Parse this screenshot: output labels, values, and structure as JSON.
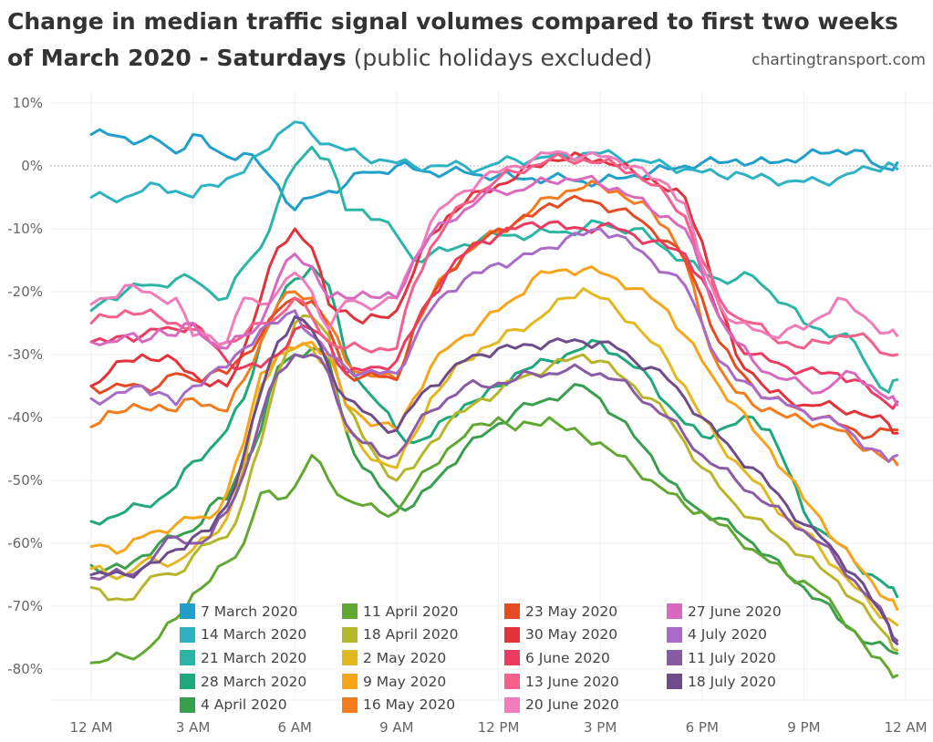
{
  "chart_data": {
    "type": "line",
    "title_bold": "Change in median traffic signal volumes compared to first two weeks of March 2020 - Saturdays",
    "title_light": "(public holidays excluded)",
    "source": "chartingtransport.com",
    "xlabel": "",
    "ylabel": "",
    "xlim": [
      0,
      24
    ],
    "ylim": [
      -87,
      11
    ],
    "x_ticks": [
      {
        "value": 0,
        "label": "12 AM"
      },
      {
        "value": 3,
        "label": "3 AM"
      },
      {
        "value": 6,
        "label": "6 AM"
      },
      {
        "value": 9,
        "label": "9 AM"
      },
      {
        "value": 12,
        "label": "12 PM"
      },
      {
        "value": 15,
        "label": "3 PM"
      },
      {
        "value": 18,
        "label": "6 PM"
      },
      {
        "value": 21,
        "label": "9 PM"
      },
      {
        "value": 24,
        "label": "12 AM"
      }
    ],
    "y_ticks": [
      {
        "value": 10,
        "label": "10%"
      },
      {
        "value": 0,
        "label": "0%"
      },
      {
        "value": -10,
        "label": "-10%"
      },
      {
        "value": -20,
        "label": "-20%"
      },
      {
        "value": -30,
        "label": "-30%"
      },
      {
        "value": -40,
        "label": "-40%"
      },
      {
        "value": -50,
        "label": "-50%"
      },
      {
        "value": -60,
        "label": "-60%"
      },
      {
        "value": -70,
        "label": "-70%"
      },
      {
        "value": -80,
        "label": "-80%"
      }
    ],
    "reference_line": 0,
    "grid": true,
    "legend_position": "bottom-center",
    "x": [
      0,
      0.5,
      1,
      1.5,
      2,
      2.5,
      3,
      3.5,
      4,
      4.5,
      5,
      5.5,
      6,
      6.5,
      7,
      7.5,
      8,
      8.5,
      9,
      9.5,
      10,
      10.5,
      11,
      11.5,
      12,
      12.5,
      13,
      13.5,
      14,
      14.5,
      15,
      15.5,
      16,
      16.5,
      17,
      17.5,
      18,
      18.5,
      19,
      19.5,
      20,
      20.5,
      21,
      21.5,
      22,
      22.5,
      23,
      23.5,
      23.75
    ],
    "series": [
      {
        "name": "7 March 2020",
        "color": "#1f9fca",
        "values": [
          5,
          5,
          4.5,
          4,
          4,
          2,
          5,
          3,
          1.5,
          2,
          0,
          -3,
          -7,
          -5,
          -4,
          -3,
          -1,
          -1,
          0,
          -0.5,
          -1,
          -1,
          -1,
          -1.5,
          -1.5,
          -2,
          -2,
          -2,
          -2,
          -2.5,
          -2.5,
          -2,
          -1.5,
          -1,
          -0.5,
          0,
          0.5,
          0.5,
          1,
          0.5,
          0.5,
          1,
          1.5,
          2,
          2.5,
          2.5,
          0.5,
          -0.5,
          0.5
        ]
      },
      {
        "name": "14 March 2020",
        "color": "#2db2c4",
        "values": [
          -5,
          -5,
          -5,
          -4,
          -3,
          -4,
          -5,
          -3,
          -2,
          -1,
          2,
          5,
          7,
          5,
          3.5,
          2.5,
          1.5,
          1,
          0.5,
          0,
          0,
          0,
          0,
          -0.5,
          0.5,
          1,
          1,
          1.5,
          1.5,
          2,
          2,
          1.5,
          1,
          0.5,
          0,
          -0.5,
          -1,
          -1.5,
          -1,
          -2,
          -2,
          -2.5,
          -2.5,
          -2.5,
          -2,
          -1,
          -0.5,
          0.5,
          -0.5
        ]
      },
      {
        "name": "21 March 2020",
        "color": "#2bb5a5",
        "values": [
          -23,
          -21,
          -20,
          -19,
          -19,
          -18,
          -18,
          -20,
          -21,
          -16,
          -13,
          -6,
          0,
          3,
          1,
          -7,
          -7,
          -8.5,
          -11,
          -15,
          -14,
          -13.5,
          -12.5,
          -11.5,
          -11,
          -11,
          -11,
          -10.5,
          -10.5,
          -10,
          -9,
          -10,
          -10,
          -11.5,
          -13.5,
          -15,
          -17,
          -18,
          -18,
          -17.5,
          -20,
          -22,
          -25,
          -26,
          -27,
          -28,
          -33,
          -36,
          -34
        ]
      },
      {
        "name": "28 March 2020",
        "color": "#1fa77d",
        "values": [
          -56.5,
          -56,
          -55,
          -54,
          -53,
          -51,
          -47,
          -45,
          -42,
          -37,
          -28,
          -22,
          -18,
          -16,
          -19,
          -30,
          -35,
          -38,
          -42,
          -44,
          -43,
          -40,
          -38,
          -37,
          -35,
          -33,
          -32,
          -31,
          -30,
          -29,
          -28,
          -30,
          -32,
          -34,
          -38,
          -41,
          -43,
          -42,
          -41,
          -40,
          -42,
          -48,
          -55,
          -58,
          -60,
          -63,
          -65,
          -67,
          -68.5
        ]
      },
      {
        "name": "4 April 2020",
        "color": "#3a9e4f",
        "values": [
          -63.5,
          -64,
          -64,
          -62,
          -60,
          -59,
          -58,
          -54,
          -53,
          -47,
          -42,
          -32,
          -30,
          -29,
          -31,
          -42,
          -48,
          -51,
          -54,
          -54,
          -51,
          -48,
          -45,
          -43,
          -41,
          -39,
          -38,
          -37,
          -36,
          -35,
          -37,
          -40,
          -43,
          -46,
          -50,
          -53,
          -55,
          -56,
          -58,
          -60,
          -62,
          -65,
          -67,
          -69,
          -72,
          -74,
          -76,
          -77,
          -77.5
        ]
      },
      {
        "name": "11 April 2020",
        "color": "#61a832",
        "values": [
          -79,
          -78.5,
          -78,
          -77.5,
          -75,
          -72,
          -68,
          -66,
          -63,
          -60,
          -52,
          -53,
          -51,
          -46,
          -50,
          -53,
          -54,
          -55,
          -55,
          -51,
          -48,
          -45,
          -43,
          -41,
          -40,
          -42,
          -41,
          -40,
          -42,
          -43,
          -44,
          -46,
          -48,
          -50,
          -52,
          -54,
          -55,
          -57,
          -59,
          -61,
          -63,
          -65,
          -66,
          -68,
          -71,
          -74,
          -78,
          -80,
          -81
        ]
      },
      {
        "name": "18 April 2020",
        "color": "#b5b62a",
        "values": [
          -67,
          -69,
          -69,
          -67,
          -65,
          -65,
          -62,
          -60,
          -59,
          -53,
          -44,
          -33,
          -25,
          -24,
          -27,
          -38,
          -43,
          -47,
          -50,
          -48,
          -44,
          -41,
          -39,
          -37,
          -36,
          -34,
          -33,
          -32,
          -31,
          -30,
          -31,
          -33,
          -35,
          -37,
          -40,
          -44,
          -48,
          -51,
          -54,
          -56,
          -58,
          -60,
          -62,
          -64,
          -66,
          -69,
          -72,
          -75,
          -77
        ]
      },
      {
        "name": "2 May 2020",
        "color": "#e2b81f",
        "values": [
          -64,
          -65,
          -65,
          -63,
          -63,
          -63,
          -61,
          -59,
          -56,
          -48,
          -35,
          -30,
          -29,
          -29,
          -32,
          -42,
          -45,
          -47,
          -48,
          -43,
          -37,
          -34,
          -31,
          -29,
          -28,
          -26,
          -25,
          -23,
          -21,
          -19.5,
          -21,
          -23,
          -25,
          -28,
          -31,
          -35,
          -40,
          -44,
          -47,
          -50,
          -53,
          -56,
          -58,
          -61,
          -64,
          -67,
          -70,
          -72,
          -73
        ]
      },
      {
        "name": "9 May 2020",
        "color": "#f7a418",
        "values": [
          -60.5,
          -60.5,
          -61,
          -59,
          -58,
          -57,
          -56,
          -56,
          -52,
          -44,
          -33,
          -30,
          -29,
          -28,
          -30,
          -38,
          -40,
          -41,
          -42,
          -37,
          -32,
          -29,
          -27,
          -25,
          -23,
          -21,
          -18,
          -17,
          -16.5,
          -16.5,
          -17,
          -18,
          -19.5,
          -21,
          -23,
          -27,
          -31,
          -35,
          -38,
          -42,
          -45,
          -49,
          -53,
          -56,
          -60,
          -63,
          -66,
          -69,
          -70.5
        ]
      },
      {
        "name": "16 May 2020",
        "color": "#f57c1c",
        "values": [
          -41.5,
          -39,
          -39,
          -38.5,
          -38,
          -39,
          -37,
          -38,
          -39,
          -34,
          -28,
          -22,
          -20,
          -21,
          -25,
          -31,
          -33,
          -33.5,
          -34,
          -26,
          -21,
          -17,
          -14,
          -12,
          -10.5,
          -9,
          -7,
          -5,
          -4,
          -3.5,
          -3,
          -4,
          -6,
          -7,
          -10,
          -15,
          -25,
          -32,
          -36,
          -38,
          -38.5,
          -40,
          -40.5,
          -41,
          -42,
          -44,
          -45,
          -47,
          -47.5
        ]
      },
      {
        "name": "23 May 2020",
        "color": "#e64b24",
        "values": [
          -35,
          -35.5,
          -35,
          -35,
          -35,
          -33,
          -34,
          -33,
          -33,
          -30,
          -27,
          -23,
          -21,
          -21.5,
          -26,
          -33,
          -33.5,
          -33.5,
          -34,
          -26,
          -21,
          -17,
          -14,
          -12,
          -10,
          -9,
          -8,
          -6,
          -5.5,
          -5.5,
          -6,
          -7,
          -8,
          -10,
          -12,
          -15,
          -21,
          -28,
          -32,
          -35,
          -37,
          -38,
          -39,
          -40,
          -41,
          -42,
          -43,
          -42,
          -42
        ]
      },
      {
        "name": "30 May 2020",
        "color": "#e3323a",
        "values": [
          -35,
          -33,
          -31,
          -30,
          -31,
          -31,
          -33,
          -35,
          -35,
          -29,
          -21,
          -13,
          -10,
          -13,
          -22,
          -23,
          -25,
          -24,
          -23,
          -17,
          -11,
          -8,
          -6,
          -4,
          -3,
          -2,
          0,
          1,
          1,
          1.5,
          1,
          0,
          -1,
          -2,
          -4,
          -5,
          -12,
          -22,
          -30,
          -33,
          -36,
          -37,
          -38,
          -38,
          -38.5,
          -39,
          -40,
          -41,
          -42.5
        ]
      },
      {
        "name": "6 June 2020",
        "color": "#ec3a60",
        "values": [
          -28,
          -28,
          -27,
          -27,
          -26,
          -26,
          -25,
          -28,
          -31,
          -32,
          -32,
          -30,
          -26,
          -26,
          -28,
          -33,
          -32.5,
          -32,
          -31,
          -26,
          -21,
          -17,
          -14,
          -12,
          -11,
          -10,
          -9,
          -9,
          -10,
          -10,
          -9.5,
          -10,
          -11,
          -12,
          -13,
          -14,
          -18,
          -24,
          -28,
          -30,
          -31,
          -32,
          -32.5,
          -33,
          -33,
          -34,
          -36,
          -38,
          -37.5
        ]
      },
      {
        "name": "13 June 2020",
        "color": "#f55f8a",
        "values": [
          -25,
          -24,
          -23,
          -23.5,
          -24,
          -25,
          -26,
          -28,
          -28,
          -27,
          -25,
          -24,
          -21,
          -24,
          -28,
          -29,
          -29,
          -29,
          -29,
          -19,
          -13,
          -9,
          -6,
          -4,
          -2,
          -1,
          0,
          1,
          1,
          1,
          0.5,
          0,
          -1,
          -3,
          -5,
          -8,
          -15,
          -21,
          -24,
          -25,
          -27,
          -28,
          -29,
          -28,
          -27,
          -27,
          -28,
          -30,
          -30
        ]
      },
      {
        "name": "20 June 2020",
        "color": "#f07cb9",
        "values": [
          -22,
          -21,
          -19,
          -20,
          -21,
          -21,
          -27,
          -27,
          -28,
          -21,
          -22,
          -20,
          -17,
          -20,
          -26,
          -21.5,
          -22,
          -22,
          -21,
          -15,
          -9,
          -6,
          -4,
          -2,
          -1,
          0,
          1,
          2,
          2,
          1.5,
          1.5,
          1,
          0,
          -2,
          -3,
          -6,
          -16,
          -22,
          -25,
          -26,
          -27,
          -26,
          -26,
          -24,
          -21,
          -23,
          -25,
          -26.5,
          -27
        ]
      },
      {
        "name": "27 June 2020",
        "color": "#d869bf",
        "values": [
          -28,
          -28,
          -27,
          -28,
          -26,
          -27,
          -25,
          -28,
          -29,
          -27,
          -25,
          -18,
          -14,
          -16,
          -21,
          -21,
          -20,
          -21,
          -21,
          -15,
          -11,
          -9,
          -7,
          -5,
          -4,
          -4,
          -3,
          -2.5,
          -2,
          -2,
          -3,
          -3.5,
          -5,
          -7,
          -8,
          -10,
          -17,
          -24,
          -28,
          -31,
          -33,
          -34,
          -35,
          -36,
          -34,
          -33,
          -35,
          -37,
          -38
        ]
      },
      {
        "name": "4 July 2020",
        "color": "#a86bc8",
        "values": [
          -37,
          -37,
          -36,
          -35,
          -36,
          -38,
          -35,
          -33,
          -32,
          -29,
          -26,
          -25,
          -23,
          -27,
          -30,
          -32,
          -33,
          -33,
          -33,
          -28,
          -23,
          -20,
          -18,
          -17,
          -15.5,
          -15,
          -14,
          -13,
          -11.5,
          -11,
          -10,
          -11,
          -13,
          -15,
          -17,
          -19,
          -25,
          -31,
          -34,
          -35,
          -37,
          -38,
          -39,
          -40,
          -41,
          -43,
          -45,
          -47,
          -46
        ]
      },
      {
        "name": "11 July 2020",
        "color": "#8b5aa4",
        "values": [
          -65.5,
          -65,
          -65,
          -64,
          -61,
          -59,
          -60,
          -59,
          -55,
          -49,
          -40,
          -33,
          -30,
          -30,
          -33,
          -41,
          -44,
          -46,
          -46,
          -42,
          -39,
          -37,
          -35,
          -35,
          -34.5,
          -34,
          -33,
          -33,
          -32.5,
          -32.5,
          -33,
          -34,
          -36,
          -38,
          -40,
          -43,
          -46,
          -48,
          -50,
          -52,
          -54,
          -56,
          -58,
          -60,
          -63,
          -66,
          -69,
          -73,
          -75.5
        ]
      },
      {
        "name": "18 July 2020",
        "color": "#6e4c8a",
        "values": [
          -65,
          -65,
          -65,
          -64,
          -63,
          -61,
          -59,
          -58,
          -54,
          -46,
          -36,
          -28,
          -24,
          -26,
          -32,
          -37,
          -39,
          -41,
          -42,
          -38,
          -35,
          -33,
          -31,
          -30,
          -29,
          -29,
          -28.5,
          -28,
          -28,
          -28,
          -28,
          -29,
          -31,
          -32,
          -34,
          -37,
          -40,
          -43,
          -46,
          -48,
          -51,
          -54,
          -57,
          -59,
          -62,
          -65,
          -69,
          -73,
          -76
        ]
      }
    ]
  }
}
